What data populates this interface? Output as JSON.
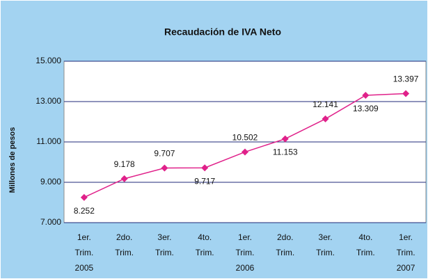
{
  "chart_data": {
    "type": "line",
    "title": "Recaudación de IVA Neto",
    "y_label": "Millones de pesos",
    "categories": [
      [
        "1er.",
        "Trim.",
        "2005"
      ],
      [
        "2do.",
        "Trim."
      ],
      [
        "3er.",
        "Trim."
      ],
      [
        "4to.",
        "Trim."
      ],
      [
        "1er.",
        "Trim.",
        "2006"
      ],
      [
        "2do.",
        "Trim."
      ],
      [
        "3er.",
        "Trim."
      ],
      [
        "4to.",
        "Trim."
      ],
      [
        "1er.",
        "Trim.",
        "2007"
      ]
    ],
    "values": [
      8252,
      9178,
      9707,
      9717,
      10502,
      11153,
      12141,
      13309,
      13397
    ],
    "value_labels": [
      "8.252",
      "9.178",
      "9.707",
      "9.717",
      "10.502",
      "11.153",
      "12.141",
      "13.309",
      "13.397"
    ],
    "color": "#e0218a",
    "ylim": [
      7000,
      15000
    ],
    "yticks": [
      {
        "value": 7000,
        "label": "7.000"
      },
      {
        "value": 9000,
        "label": "9.000"
      },
      {
        "value": 11000,
        "label": "11.000"
      },
      {
        "value": 13000,
        "label": "13.000"
      },
      {
        "value": 15000,
        "label": "15.000"
      }
    ],
    "grid": true
  }
}
